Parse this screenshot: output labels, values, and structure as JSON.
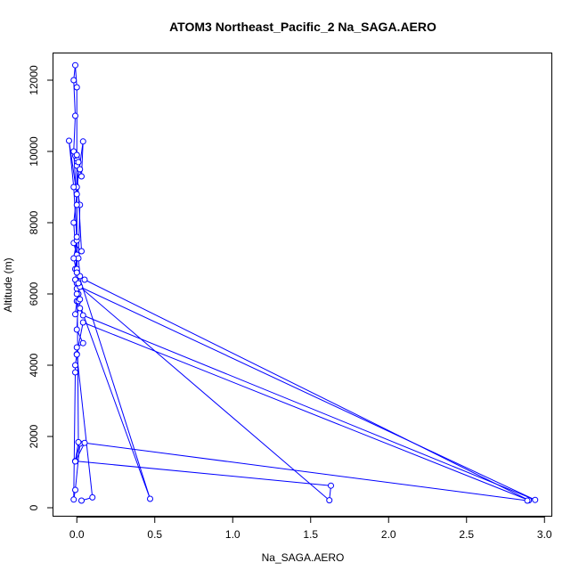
{
  "chart_data": {
    "type": "line",
    "title": "ATOM3 Northeast_Pacific_2 Na_SAGA.AERO",
    "xlabel": "Na_SAGA.AERO",
    "ylabel": "Altitude (m)",
    "xlim": [
      -0.15,
      3.05
    ],
    "ylim": [
      -250,
      12750
    ],
    "xticks": [
      0.0,
      0.5,
      1.0,
      1.5,
      2.0,
      2.5,
      3.0
    ],
    "xtick_labels": [
      "0.0",
      "0.5",
      "1.0",
      "1.5",
      "2.0",
      "2.5",
      "3.0"
    ],
    "yticks": [
      0,
      2000,
      4000,
      6000,
      8000,
      10000,
      12000
    ],
    "ytick_labels": [
      "0",
      "2000",
      "4000",
      "6000",
      "8000",
      "10000",
      "12000"
    ],
    "grid": false,
    "legend": "none",
    "colors": {
      "series": "#0000ff"
    },
    "series": [
      {
        "points": [
          [
            0.03,
            200
          ],
          [
            0.1,
            290
          ],
          [
            0.0,
            4310
          ],
          [
            0.04,
            5200
          ],
          [
            2.9,
            210
          ],
          [
            0.05,
            6400
          ],
          [
            0.01,
            6500
          ],
          [
            -0.01,
            6700
          ],
          [
            0.0,
            7100
          ],
          [
            -0.02,
            7430
          ],
          [
            0.03,
            7200
          ],
          [
            0.0,
            9600
          ],
          [
            0.0,
            9800
          ],
          [
            -0.01,
            9880
          ],
          [
            0.01,
            9700
          ],
          [
            0.0,
            9900
          ],
          [
            0.02,
            9500
          ],
          [
            0.03,
            9300
          ],
          [
            0.04,
            10280
          ],
          [
            0.0,
            9000
          ],
          [
            0.02,
            8500
          ],
          [
            0.01,
            7000
          ],
          [
            0.02,
            6500
          ],
          [
            0.0,
            6300
          ],
          [
            -0.01,
            6400
          ],
          [
            0.0,
            6150
          ],
          [
            0.01,
            6000
          ],
          [
            0.0,
            5800
          ],
          [
            -0.01,
            5430
          ],
          [
            0.02,
            5600
          ],
          [
            0.04,
            5400
          ],
          [
            2.94,
            220
          ],
          [
            0.02,
            6200
          ],
          [
            1.62,
            210
          ],
          [
            1.63,
            620
          ],
          [
            -0.01,
            1310
          ],
          [
            0.02,
            1800
          ],
          [
            -0.01,
            500
          ],
          [
            -0.02,
            230
          ],
          [
            -0.01,
            3800
          ],
          [
            -0.01,
            4000
          ],
          [
            0.0,
            4300
          ],
          [
            0.0,
            4500
          ],
          [
            0.04,
            4620
          ],
          [
            0.0,
            5000
          ],
          [
            0.01,
            5800
          ],
          [
            0.47,
            250
          ],
          [
            0.0,
            6700
          ],
          [
            -0.02,
            8000
          ],
          [
            0.0,
            8800
          ],
          [
            -0.05,
            10300
          ],
          [
            -0.02,
            9000
          ],
          [
            0.0,
            7500
          ],
          [
            -0.02,
            7000
          ],
          [
            0.0,
            6600
          ],
          [
            0.01,
            6300
          ],
          [
            0.02,
            5850
          ],
          [
            0.0,
            6000
          ],
          [
            0.0,
            8500
          ],
          [
            -0.02,
            10000
          ],
          [
            -0.01,
            11000
          ],
          [
            -0.02,
            12000
          ],
          [
            -0.01,
            12420
          ],
          [
            0.0,
            11800
          ],
          [
            0.0,
            9900
          ],
          [
            0.0,
            7600
          ],
          [
            0.01,
            1840
          ],
          [
            -0.01,
            1300
          ],
          [
            0.05,
            1820
          ],
          [
            2.89,
            200
          ]
        ]
      }
    ]
  }
}
